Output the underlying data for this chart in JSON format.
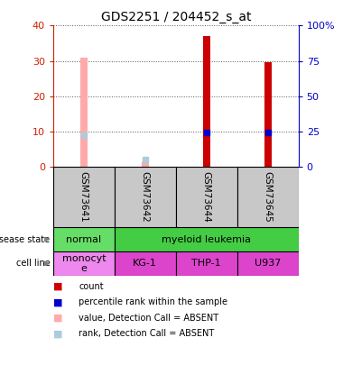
{
  "title": "GDS2251 / 204452_s_at",
  "samples": [
    "GSM73641",
    "GSM73642",
    "GSM73644",
    "GSM73645"
  ],
  "bar_values": [
    31,
    1.5,
    37,
    29.5
  ],
  "bar_colors": [
    "#ffaaaa",
    "#ffaaaa",
    "#cc0000",
    "#cc0000"
  ],
  "rank_values": [
    22.5,
    5,
    24.5,
    24
  ],
  "rank_colors": [
    "#aaccdd",
    "#aaccdd",
    "#0000cc",
    "#0000cc"
  ],
  "ylim_left": [
    0,
    40
  ],
  "ylim_right": [
    0,
    100
  ],
  "yticks_left": [
    0,
    10,
    20,
    30,
    40
  ],
  "yticks_right": [
    0,
    25,
    50,
    75,
    100
  ],
  "ytick_labels_right": [
    "0",
    "25",
    "50",
    "75",
    "100%"
  ],
  "disease_state_labels": [
    "normal",
    "myeloid leukemia"
  ],
  "cell_line_labels": [
    "monocyt\ne",
    "KG-1",
    "THP-1",
    "U937"
  ],
  "disease_state_color_normal": "#66dd66",
  "disease_state_color_leukemia": "#44cc44",
  "cell_line_color_monocyte": "#ee88ee",
  "cell_line_color_other": "#dd44cc",
  "bar_width": 0.12,
  "bg_color": "#ffffff",
  "plot_bg": "#ffffff",
  "grid_color": "#333333",
  "left_axis_color": "#cc2200",
  "right_axis_color": "#0000cc",
  "sample_box_color": "#c8c8c8",
  "legend_items": [
    {
      "label": "count",
      "color": "#cc0000"
    },
    {
      "label": "percentile rank within the sample",
      "color": "#0000cc"
    },
    {
      "label": "value, Detection Call = ABSENT",
      "color": "#ffaaaa"
    },
    {
      "label": "rank, Detection Call = ABSENT",
      "color": "#aaccdd"
    }
  ]
}
